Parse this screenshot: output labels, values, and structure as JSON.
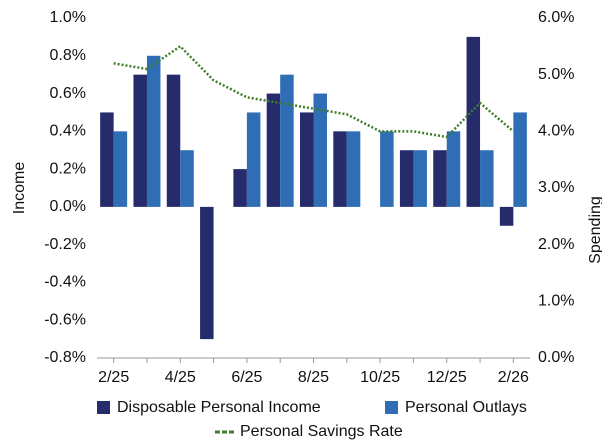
{
  "chart_data": {
    "type": "bar_line",
    "y_label": "Income",
    "y2_label": "Spending",
    "categories": [
      "2/25",
      null,
      "4/25",
      null,
      "6/25",
      null,
      "8/25",
      null,
      "10/25",
      null,
      "12/25",
      null,
      "2/26"
    ],
    "series": [
      {
        "name": "Disposable Personal Income",
        "color": "#262b6b",
        "type": "bar",
        "values": [
          0.5,
          0.7,
          0.7,
          -0.7,
          0.2,
          0.6,
          0.5,
          0.4,
          null,
          0.3,
          0.3,
          0.9,
          -0.1
        ]
      },
      {
        "name": "Personal Outlays",
        "color": "#2f6db5",
        "type": "bar",
        "values": [
          0.4,
          0.8,
          0.3,
          null,
          0.5,
          0.7,
          0.6,
          0.4,
          0.4,
          0.3,
          0.4,
          0.3,
          0.5
        ]
      },
      {
        "name": "Personal Savings Rate",
        "color": "#3f7d2a",
        "type": "line",
        "axis": "y2",
        "values": [
          5.2,
          5.1,
          5.5,
          4.9,
          4.6,
          4.5,
          4.4,
          4.3,
          4.0,
          4.0,
          3.9,
          4.5,
          4.0
        ]
      }
    ],
    "ylim": [
      -0.8,
      1.0
    ],
    "yticks": [
      {
        "value": -0.8,
        "label": "-0.8%"
      },
      {
        "value": -0.6,
        "label": "-0.6%"
      },
      {
        "value": -0.4,
        "label": "-0.4%"
      },
      {
        "value": -0.2,
        "label": "-0.2%"
      },
      {
        "value": 0.0,
        "label": "0.0%"
      },
      {
        "value": 0.2,
        "label": "0.2%"
      },
      {
        "value": 0.4,
        "label": "0.4%"
      },
      {
        "value": 0.6,
        "label": "0.6%"
      },
      {
        "value": 0.8,
        "label": "0.8%"
      },
      {
        "value": 1.0,
        "label": "1.0%"
      }
    ],
    "y2lim": [
      0,
      6
    ],
    "y2ticks": [
      {
        "value": 0,
        "label": "0.0%"
      },
      {
        "value": 1,
        "label": "1.0%"
      },
      {
        "value": 2,
        "label": "2.0%"
      },
      {
        "value": 3,
        "label": "3.0%"
      },
      {
        "value": 4,
        "label": "4.0%"
      },
      {
        "value": 5,
        "label": "5.0%"
      },
      {
        "value": 6,
        "label": "6.0%"
      }
    ],
    "grid": false
  }
}
